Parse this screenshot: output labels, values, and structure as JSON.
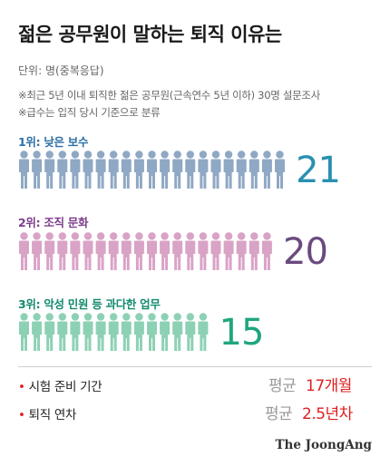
{
  "title": "젊은 공무원이 말하는 퇴직 이유는",
  "unit": "단위: 명(중복응답)",
  "notes": [
    "※최근 5년 이내 퇴직한 젊은 공무원(근속연수 5년 이하) 30명 설문조사",
    "※급수는 입직 당시 기준으로 분류"
  ],
  "chart_data": {
    "type": "bar",
    "categories": [
      "1위: 낮은 보수",
      "2위: 조직 문화",
      "3위: 악성 민원 등 과다한 업무"
    ],
    "values": [
      21,
      20,
      15
    ],
    "colors": [
      "#8fa8c4",
      "#d9a3c6",
      "#8dd1b4"
    ],
    "label_colors": [
      "#2b6fa5",
      "#7b3c8a",
      "#138a6e"
    ],
    "count_colors": [
      "#2a8fb0",
      "#6a4a80",
      "#1fa67f"
    ],
    "icon": "person-icon"
  },
  "stats": [
    {
      "label": "시험 준비 기간",
      "prefix": "평균",
      "value": "17개월"
    },
    {
      "label": "퇴직 연차",
      "prefix": "평균",
      "value": "2.5년차"
    }
  ],
  "bullet": "•",
  "source": "The JoongAng"
}
